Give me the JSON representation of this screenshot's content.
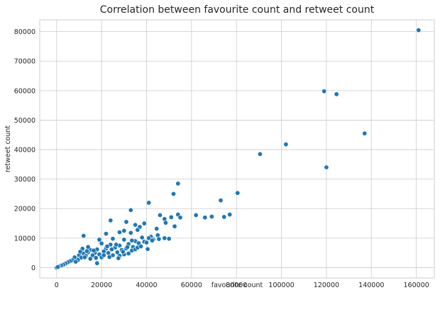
{
  "chart_data": {
    "type": "scatter",
    "title": "Correlation between favourite count and retweet count",
    "xlabel": "favourite count",
    "ylabel": "retweet count",
    "xlim": [
      -7500,
      168000
    ],
    "ylim": [
      -3500,
      84000
    ],
    "xticks": [
      0,
      20000,
      40000,
      60000,
      80000,
      100000,
      120000,
      140000,
      160000
    ],
    "yticks": [
      0,
      10000,
      20000,
      30000,
      40000,
      50000,
      60000,
      70000,
      80000
    ],
    "grid": true,
    "color": "#1f77b4",
    "points": [
      [
        161000,
        80500
      ],
      [
        119000,
        59800
      ],
      [
        124500,
        58800
      ],
      [
        137000,
        45500
      ],
      [
        102000,
        41800
      ],
      [
        90500,
        38500
      ],
      [
        120000,
        34000
      ],
      [
        54000,
        28500
      ],
      [
        52000,
        25000
      ],
      [
        80500,
        25300
      ],
      [
        73000,
        22800
      ],
      [
        41000,
        22000
      ],
      [
        33000,
        19500
      ],
      [
        54000,
        18000
      ],
      [
        62000,
        17800
      ],
      [
        69000,
        17300
      ],
      [
        74500,
        17200
      ],
      [
        77000,
        18000
      ],
      [
        66000,
        17000
      ],
      [
        46000,
        17800
      ],
      [
        55000,
        17000
      ],
      [
        51000,
        17100
      ],
      [
        48000,
        16500
      ],
      [
        24000,
        16000
      ],
      [
        31000,
        15500
      ],
      [
        39000,
        15000
      ],
      [
        48500,
        15200
      ],
      [
        35000,
        14500
      ],
      [
        37000,
        13800
      ],
      [
        44500,
        13200
      ],
      [
        52500,
        14000
      ],
      [
        30000,
        12500
      ],
      [
        36000,
        12800
      ],
      [
        28000,
        12000
      ],
      [
        33000,
        11800
      ],
      [
        22000,
        11500
      ],
      [
        12000,
        10800
      ],
      [
        42000,
        10500
      ],
      [
        45000,
        11000
      ],
      [
        48000,
        10000
      ],
      [
        50000,
        9800
      ],
      [
        41000,
        10000
      ],
      [
        45500,
        9700
      ],
      [
        39000,
        8800
      ],
      [
        40000,
        8500
      ],
      [
        43000,
        9500
      ],
      [
        35000,
        9000
      ],
      [
        38000,
        10200
      ],
      [
        40500,
        6300
      ],
      [
        42500,
        9200
      ],
      [
        36500,
        8300
      ],
      [
        30000,
        9500
      ],
      [
        25000,
        9800
      ],
      [
        19000,
        9500
      ],
      [
        20000,
        8200
      ],
      [
        24000,
        7800
      ],
      [
        28000,
        7500
      ],
      [
        32000,
        8000
      ],
      [
        34000,
        7000
      ],
      [
        26000,
        6800
      ],
      [
        22000,
        6500
      ],
      [
        18000,
        6200
      ],
      [
        15000,
        6000
      ],
      [
        29000,
        6000
      ],
      [
        31000,
        6500
      ],
      [
        33500,
        5800
      ],
      [
        35000,
        6200
      ],
      [
        27000,
        5200
      ],
      [
        23000,
        5000
      ],
      [
        21000,
        5500
      ],
      [
        17000,
        5000
      ],
      [
        14000,
        5200
      ],
      [
        12000,
        4800
      ],
      [
        10000,
        4200
      ],
      [
        13000,
        4000
      ],
      [
        16000,
        4200
      ],
      [
        19000,
        4500
      ],
      [
        25000,
        4200
      ],
      [
        28000,
        4000
      ],
      [
        30000,
        4500
      ],
      [
        32000,
        4800
      ],
      [
        20000,
        3500
      ],
      [
        18000,
        1500
      ],
      [
        15000,
        3000
      ],
      [
        11000,
        3400
      ],
      [
        9000,
        3000
      ],
      [
        8000,
        3500
      ],
      [
        7000,
        2500
      ],
      [
        6000,
        2200
      ],
      [
        5000,
        1800
      ],
      [
        4000,
        1400
      ],
      [
        3000,
        1000
      ],
      [
        2000,
        700
      ],
      [
        1000,
        400
      ],
      [
        0,
        0
      ],
      [
        500,
        200
      ],
      [
        14000,
        7000
      ],
      [
        11500,
        6400
      ],
      [
        13500,
        5600
      ],
      [
        10500,
        5400
      ],
      [
        16500,
        5800
      ],
      [
        12500,
        3500
      ],
      [
        9500,
        2600
      ],
      [
        8500,
        2000
      ],
      [
        22500,
        7200
      ],
      [
        24500,
        6200
      ],
      [
        26500,
        7800
      ],
      [
        21000,
        4200
      ],
      [
        17500,
        3300
      ],
      [
        23500,
        3600
      ],
      [
        27500,
        3200
      ],
      [
        29500,
        5400
      ],
      [
        31500,
        7000
      ],
      [
        33500,
        9200
      ],
      [
        36000,
        6800
      ],
      [
        37500,
        7200
      ]
    ]
  }
}
